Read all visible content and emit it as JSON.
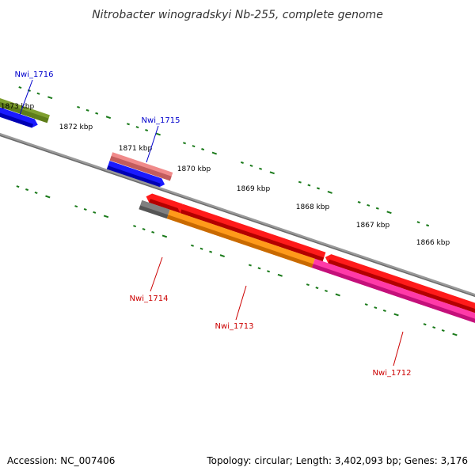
{
  "header": {
    "title": "Nitrobacter winogradskyi Nb-255, complete genome"
  },
  "scale": {
    "ticks": [
      {
        "label": "1873 kbp",
        "bp": 1873000
      },
      {
        "label": "1872 kbp",
        "bp": 1872000
      },
      {
        "label": "1871 kbp",
        "bp": 1871000
      },
      {
        "label": "1870 kbp",
        "bp": 1870000
      },
      {
        "label": "1869 kbp",
        "bp": 1869000
      },
      {
        "label": "1868 kbp",
        "bp": 1868000
      },
      {
        "label": "1867 kbp",
        "bp": 1867000
      },
      {
        "label": "1866 kbp",
        "bp": 1866000
      }
    ]
  },
  "genes": [
    {
      "id": "Nwi_1716",
      "strand": "forward",
      "colors": [
        "#7f9f2f",
        "#5e7d19"
      ]
    },
    {
      "id": "Nwi_1715",
      "strand": "forward",
      "colors": [
        "#f08a8a",
        "#c25c5c"
      ]
    },
    {
      "id": "Nwi_1714",
      "strand": "reverse",
      "colors": [
        "#ff1a1a",
        "#b30000"
      ]
    },
    {
      "id": "Nwi_1713",
      "strand": "reverse",
      "colors": [
        "#ff9a1a",
        "#c96a00"
      ]
    },
    {
      "id": "Nwi_1712",
      "strand": "reverse",
      "colors": [
        "#ff3aa8",
        "#c4107a"
      ]
    }
  ],
  "legend_colors": {
    "forward_label": "#0000cc",
    "reverse_label": "#cc0000",
    "blue_feature": "#1a1aff",
    "gray_feature": "#808080",
    "tick_green": "#1a7a1a"
  },
  "footer": {
    "accession": "Accession: NC_007406",
    "summary": "Topology: circular; Length: 3,402,093 bp; Genes: 3,176"
  }
}
